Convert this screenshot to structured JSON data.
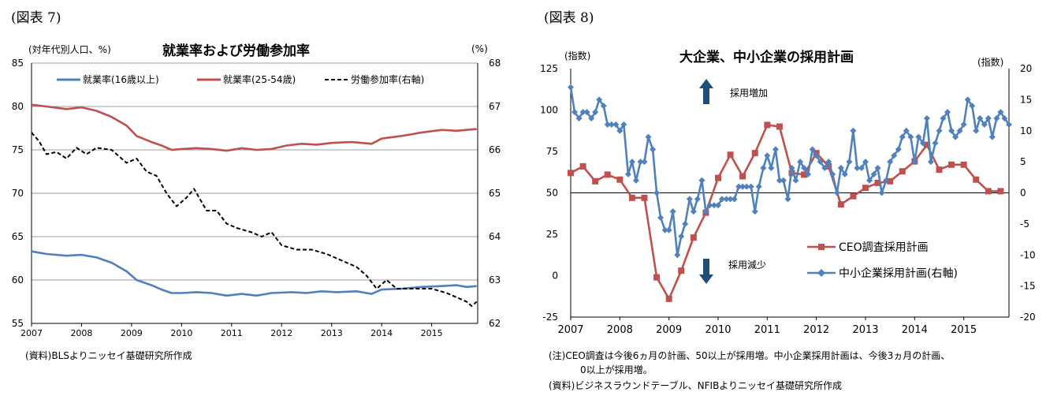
{
  "left": {
    "fig_label": "(図表 7)",
    "source": "(資料)BLSよりニッセイ基礎研究所作成"
  },
  "right": {
    "fig_label": "(図表 8)",
    "note_line1": "(注)CEO調査は今後6ヵ月の計画、50以上が採用増。中小企業採用計画は、今後3ヵ月の計画、",
    "note_line2": "0以上が採用増。",
    "source": "(資料)ビジネスラウンドテーブル、NFIBよりニッセイ基礎研究所作成",
    "arrow_up_label": "採用増加",
    "arrow_down_label": "採用減少"
  },
  "colors": {
    "blue": "#4f81bd",
    "red": "#c0504d",
    "black": "#000000",
    "grid": "#7f7f7f"
  },
  "chart_data": [
    {
      "type": "line",
      "title": "就業率および労働参加率",
      "ylabel_left": "(対年代別人口、%)",
      "ylabel_right": "(%)",
      "ylim_left": [
        55,
        85
      ],
      "ylim_right": [
        62,
        68
      ],
      "yticks_left": [
        "55",
        "60",
        "65",
        "70",
        "75",
        "80",
        "85"
      ],
      "yticks_right": [
        "62",
        "63",
        "64",
        "65",
        "66",
        "67",
        "68"
      ],
      "xlim": [
        2007,
        2015.92
      ],
      "xticks": [
        "2007",
        "2008",
        "2009",
        "2010",
        "2011",
        "2012",
        "2013",
        "2014",
        "2015"
      ],
      "series": [
        {
          "name": "就業率(16歳以上)",
          "axis": "left",
          "color": "#4f81bd",
          "style": "solid",
          "points": [
            [
              2007,
              63.3
            ],
            [
              2007.3,
              63.0
            ],
            [
              2007.7,
              62.8
            ],
            [
              2008,
              62.9
            ],
            [
              2008.3,
              62.6
            ],
            [
              2008.6,
              62.0
            ],
            [
              2008.9,
              61.0
            ],
            [
              2009.1,
              60.0
            ],
            [
              2009.4,
              59.4
            ],
            [
              2009.6,
              58.9
            ],
            [
              2009.8,
              58.5
            ],
            [
              2010,
              58.5
            ],
            [
              2010.3,
              58.6
            ],
            [
              2010.6,
              58.5
            ],
            [
              2010.9,
              58.2
            ],
            [
              2011.2,
              58.4
            ],
            [
              2011.5,
              58.2
            ],
            [
              2011.8,
              58.5
            ],
            [
              2012.2,
              58.6
            ],
            [
              2012.5,
              58.5
            ],
            [
              2012.8,
              58.7
            ],
            [
              2013.1,
              58.6
            ],
            [
              2013.5,
              58.7
            ],
            [
              2013.8,
              58.4
            ],
            [
              2014,
              58.9
            ],
            [
              2014.4,
              59.0
            ],
            [
              2014.8,
              59.2
            ],
            [
              2015.2,
              59.3
            ],
            [
              2015.5,
              59.4
            ],
            [
              2015.7,
              59.2
            ],
            [
              2015.9,
              59.3
            ]
          ]
        },
        {
          "name": "就業率(25-54歳)",
          "axis": "left",
          "color": "#c0504d",
          "style": "solid",
          "points": [
            [
              2007,
              80.2
            ],
            [
              2007.3,
              80.0
            ],
            [
              2007.7,
              79.7
            ],
            [
              2008,
              79.9
            ],
            [
              2008.3,
              79.5
            ],
            [
              2008.6,
              78.8
            ],
            [
              2008.9,
              77.8
            ],
            [
              2009.1,
              76.6
            ],
            [
              2009.4,
              75.9
            ],
            [
              2009.6,
              75.5
            ],
            [
              2009.8,
              75.0
            ],
            [
              2010,
              75.1
            ],
            [
              2010.3,
              75.2
            ],
            [
              2010.6,
              75.1
            ],
            [
              2010.9,
              74.9
            ],
            [
              2011.2,
              75.2
            ],
            [
              2011.5,
              75.0
            ],
            [
              2011.8,
              75.1
            ],
            [
              2012.1,
              75.5
            ],
            [
              2012.4,
              75.7
            ],
            [
              2012.7,
              75.6
            ],
            [
              2013,
              75.8
            ],
            [
              2013.4,
              75.9
            ],
            [
              2013.8,
              75.7
            ],
            [
              2014,
              76.3
            ],
            [
              2014.4,
              76.6
            ],
            [
              2014.8,
              77.0
            ],
            [
              2015.2,
              77.3
            ],
            [
              2015.5,
              77.2
            ],
            [
              2015.9,
              77.4
            ]
          ]
        },
        {
          "name": "労働参加率(右軸)",
          "axis": "right",
          "color": "#000000",
          "style": "dashed",
          "points": [
            [
              2007,
              66.4
            ],
            [
              2007.15,
              66.2
            ],
            [
              2007.3,
              65.9
            ],
            [
              2007.5,
              65.95
            ],
            [
              2007.7,
              65.8
            ],
            [
              2007.9,
              66.05
            ],
            [
              2008.1,
              65.9
            ],
            [
              2008.3,
              66.05
            ],
            [
              2008.6,
              66.0
            ],
            [
              2008.9,
              65.7
            ],
            [
              2009.1,
              65.8
            ],
            [
              2009.3,
              65.5
            ],
            [
              2009.5,
              65.4
            ],
            [
              2009.7,
              65.0
            ],
            [
              2009.9,
              64.7
            ],
            [
              2010.1,
              64.9
            ],
            [
              2010.25,
              65.1
            ],
            [
              2010.5,
              64.6
            ],
            [
              2010.7,
              64.6
            ],
            [
              2010.9,
              64.3
            ],
            [
              2011.1,
              64.2
            ],
            [
              2011.4,
              64.1
            ],
            [
              2011.6,
              64.0
            ],
            [
              2011.8,
              64.1
            ],
            [
              2012,
              63.8
            ],
            [
              2012.3,
              63.7
            ],
            [
              2012.6,
              63.7
            ],
            [
              2012.9,
              63.6
            ],
            [
              2013.1,
              63.5
            ],
            [
              2013.3,
              63.4
            ],
            [
              2013.5,
              63.3
            ],
            [
              2013.7,
              63.1
            ],
            [
              2013.9,
              62.8
            ],
            [
              2014.1,
              63.0
            ],
            [
              2014.3,
              62.8
            ],
            [
              2014.5,
              62.8
            ],
            [
              2014.8,
              62.8
            ],
            [
              2015,
              62.8
            ],
            [
              2015.3,
              62.7
            ],
            [
              2015.5,
              62.6
            ],
            [
              2015.7,
              62.5
            ],
            [
              2015.8,
              62.4
            ],
            [
              2015.9,
              62.5
            ]
          ]
        }
      ]
    },
    {
      "type": "line",
      "title": "大企業、中小企業の採用計画",
      "ylabel_left": "(指数)",
      "ylabel_right": "(指数)",
      "ylim_left": [
        -25,
        125
      ],
      "ylim_right": [
        -20,
        20
      ],
      "yticks_left": [
        "-25",
        "0",
        "25",
        "50",
        "75",
        "100",
        "125"
      ],
      "yticks_right": [
        "-20",
        "-15",
        "-10",
        "-5",
        "0",
        "5",
        "10",
        "15",
        "20"
      ],
      "xlim": [
        2007,
        2015.92
      ],
      "xticks": [
        "2007",
        "2008",
        "2009",
        "2010",
        "2011",
        "2012",
        "2013",
        "2014",
        "2015"
      ],
      "series": [
        {
          "name": "CEO調査採用計画",
          "axis": "left",
          "color": "#c0504d",
          "marker": "square",
          "points": [
            [
              2007,
              62
            ],
            [
              2007.25,
              66
            ],
            [
              2007.5,
              57
            ],
            [
              2007.75,
              61
            ],
            [
              2008,
              58
            ],
            [
              2008.25,
              47
            ],
            [
              2008.5,
              47
            ],
            [
              2008.75,
              -1
            ],
            [
              2009,
              -14
            ],
            [
              2009.25,
              3
            ],
            [
              2009.5,
              23
            ],
            [
              2009.75,
              38
            ],
            [
              2010,
              59
            ],
            [
              2010.25,
              73
            ],
            [
              2010.5,
              60
            ],
            [
              2010.75,
              74
            ],
            [
              2011,
              91
            ],
            [
              2011.25,
              90
            ],
            [
              2011.5,
              62
            ],
            [
              2011.75,
              61
            ],
            [
              2012,
              74
            ],
            [
              2012.25,
              66
            ],
            [
              2012.5,
              43
            ],
            [
              2012.75,
              48
            ],
            [
              2013,
              53
            ],
            [
              2013.25,
              56
            ],
            [
              2013.5,
              57
            ],
            [
              2013.75,
              63
            ],
            [
              2014,
              69
            ],
            [
              2014.25,
              79
            ],
            [
              2014.5,
              64
            ],
            [
              2014.75,
              67
            ],
            [
              2015,
              67
            ],
            [
              2015.25,
              58
            ],
            [
              2015.5,
              51
            ],
            [
              2015.75,
              51
            ]
          ]
        },
        {
          "name": "中小企業採用計画(右軸)",
          "axis": "right",
          "color": "#4f81bd",
          "marker": "diamond",
          "points": [
            [
              2007.0,
              17
            ],
            [
              2007.08,
              13
            ],
            [
              2007.17,
              12
            ],
            [
              2007.25,
              13
            ],
            [
              2007.33,
              13
            ],
            [
              2007.42,
              12
            ],
            [
              2007.5,
              13
            ],
            [
              2007.58,
              15
            ],
            [
              2007.67,
              14
            ],
            [
              2007.75,
              11
            ],
            [
              2007.83,
              11
            ],
            [
              2007.92,
              11
            ],
            [
              2008.0,
              10
            ],
            [
              2008.08,
              11
            ],
            [
              2008.17,
              3
            ],
            [
              2008.25,
              5
            ],
            [
              2008.33,
              2
            ],
            [
              2008.42,
              5
            ],
            [
              2008.5,
              5
            ],
            [
              2008.58,
              9
            ],
            [
              2008.67,
              7
            ],
            [
              2008.75,
              0
            ],
            [
              2008.83,
              -4
            ],
            [
              2008.92,
              -6
            ],
            [
              2009.0,
              -6
            ],
            [
              2009.08,
              -3
            ],
            [
              2009.17,
              -10
            ],
            [
              2009.25,
              -7
            ],
            [
              2009.33,
              -5
            ],
            [
              2009.42,
              -1
            ],
            [
              2009.5,
              -3
            ],
            [
              2009.58,
              -1
            ],
            [
              2009.67,
              2
            ],
            [
              2009.75,
              -3
            ],
            [
              2009.83,
              -2
            ],
            [
              2009.92,
              -2
            ],
            [
              2010.0,
              -2
            ],
            [
              2010.08,
              -1
            ],
            [
              2010.17,
              -1
            ],
            [
              2010.25,
              -1
            ],
            [
              2010.33,
              -1
            ],
            [
              2010.42,
              1
            ],
            [
              2010.5,
              1
            ],
            [
              2010.58,
              1
            ],
            [
              2010.67,
              1
            ],
            [
              2010.75,
              -3
            ],
            [
              2010.83,
              1
            ],
            [
              2010.92,
              4
            ],
            [
              2011.0,
              6
            ],
            [
              2011.08,
              4
            ],
            [
              2011.17,
              7
            ],
            [
              2011.25,
              2
            ],
            [
              2011.33,
              2
            ],
            [
              2011.42,
              -1
            ],
            [
              2011.5,
              4
            ],
            [
              2011.58,
              2
            ],
            [
              2011.67,
              5
            ],
            [
              2011.75,
              4
            ],
            [
              2011.83,
              3
            ],
            [
              2011.92,
              7
            ],
            [
              2012.0,
              6
            ],
            [
              2012.08,
              5
            ],
            [
              2012.17,
              4
            ],
            [
              2012.25,
              5
            ],
            [
              2012.33,
              3
            ],
            [
              2012.42,
              0
            ],
            [
              2012.5,
              4
            ],
            [
              2012.58,
              3
            ],
            [
              2012.67,
              5
            ],
            [
              2012.75,
              10
            ],
            [
              2012.83,
              4
            ],
            [
              2012.92,
              4
            ],
            [
              2013.0,
              5
            ],
            [
              2013.08,
              2
            ],
            [
              2013.17,
              3
            ],
            [
              2013.25,
              4
            ],
            [
              2013.33,
              0
            ],
            [
              2013.42,
              2
            ],
            [
              2013.5,
              5
            ],
            [
              2013.58,
              6
            ],
            [
              2013.67,
              7
            ],
            [
              2013.75,
              9
            ],
            [
              2013.83,
              10
            ],
            [
              2013.92,
              9
            ],
            [
              2014.0,
              5
            ],
            [
              2014.08,
              9
            ],
            [
              2014.17,
              8
            ],
            [
              2014.25,
              12
            ],
            [
              2014.33,
              5
            ],
            [
              2014.42,
              8
            ],
            [
              2014.5,
              10
            ],
            [
              2014.58,
              12
            ],
            [
              2014.67,
              13
            ],
            [
              2014.75,
              10
            ],
            [
              2014.83,
              9
            ],
            [
              2014.92,
              10
            ],
            [
              2015.0,
              11
            ],
            [
              2015.08,
              15
            ],
            [
              2015.17,
              14
            ],
            [
              2015.25,
              10
            ],
            [
              2015.33,
              12
            ],
            [
              2015.42,
              11
            ],
            [
              2015.5,
              12
            ],
            [
              2015.58,
              9
            ],
            [
              2015.67,
              12
            ],
            [
              2015.75,
              13
            ],
            [
              2015.83,
              12
            ],
            [
              2015.92,
              11
            ]
          ]
        }
      ]
    }
  ]
}
